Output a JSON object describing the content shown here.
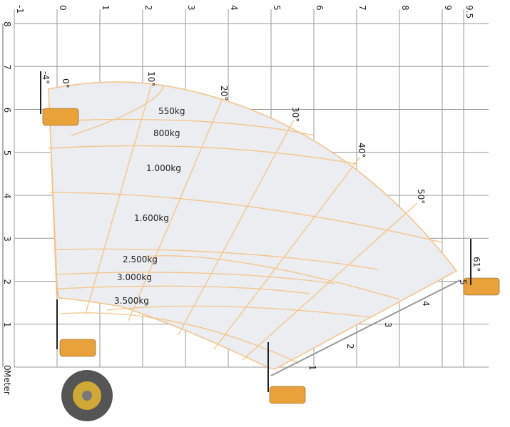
{
  "x_axis": {
    "ticks": [
      -1,
      0,
      1,
      2,
      3,
      4,
      5,
      6,
      7,
      8,
      9,
      9.5
    ]
  },
  "y_axis": {
    "ticks": [
      0,
      1,
      2,
      3,
      4,
      5,
      6,
      7,
      8
    ],
    "unit": "Meter"
  },
  "angles": [
    "-4°",
    "0°",
    "10°",
    "20°",
    "30°",
    "40°",
    "50°",
    "61°"
  ],
  "loads": [
    "550kg",
    "800kg",
    "1.000kg",
    "1.600kg",
    "2.500kg",
    "3.000kg",
    "3.500kg"
  ],
  "extension": [
    1,
    2,
    3,
    4,
    5
  ]
}
